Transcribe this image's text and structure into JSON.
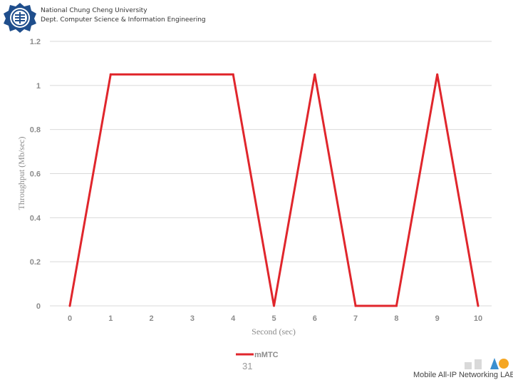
{
  "header": {
    "university": "National Chung Cheng University",
    "department": "Dept. Computer Science & Information Engineering"
  },
  "footer": {
    "page_number": "31",
    "lab_name": "Mobile All-IP Networking LAB"
  },
  "colors": {
    "series": "#e0262c",
    "grid": "#d9d9d9",
    "text": "#8c8c8c",
    "logo_blue": "#1f4e8c"
  },
  "icons": [
    "university-logo-icon",
    "lab-logo-icon"
  ],
  "chart_data": {
    "type": "line",
    "title": "",
    "xlabel": "Second (sec)",
    "ylabel": "Throughput (Mb/sec)",
    "x": [
      0,
      1,
      2,
      3,
      4,
      5,
      6,
      7,
      8,
      9,
      10
    ],
    "xticks": [
      "0",
      "1",
      "2",
      "3",
      "4",
      "5",
      "6",
      "7",
      "8",
      "9",
      "10"
    ],
    "yticks": [
      "0",
      "0.2",
      "0.4",
      "0.6",
      "0.8",
      "1",
      "1.2"
    ],
    "ylim": [
      0,
      1.2
    ],
    "xlim": [
      0,
      10
    ],
    "grid": true,
    "legend_position": "bottom",
    "series": [
      {
        "name": "mMTC",
        "color": "#e0262c",
        "points": [
          [
            0,
            0
          ],
          [
            1,
            1.05
          ],
          [
            4,
            1.05
          ],
          [
            5,
            0
          ],
          [
            6,
            1.05
          ],
          [
            7,
            0
          ],
          [
            8,
            0
          ],
          [
            9,
            1.05
          ],
          [
            10,
            0
          ]
        ]
      }
    ]
  }
}
